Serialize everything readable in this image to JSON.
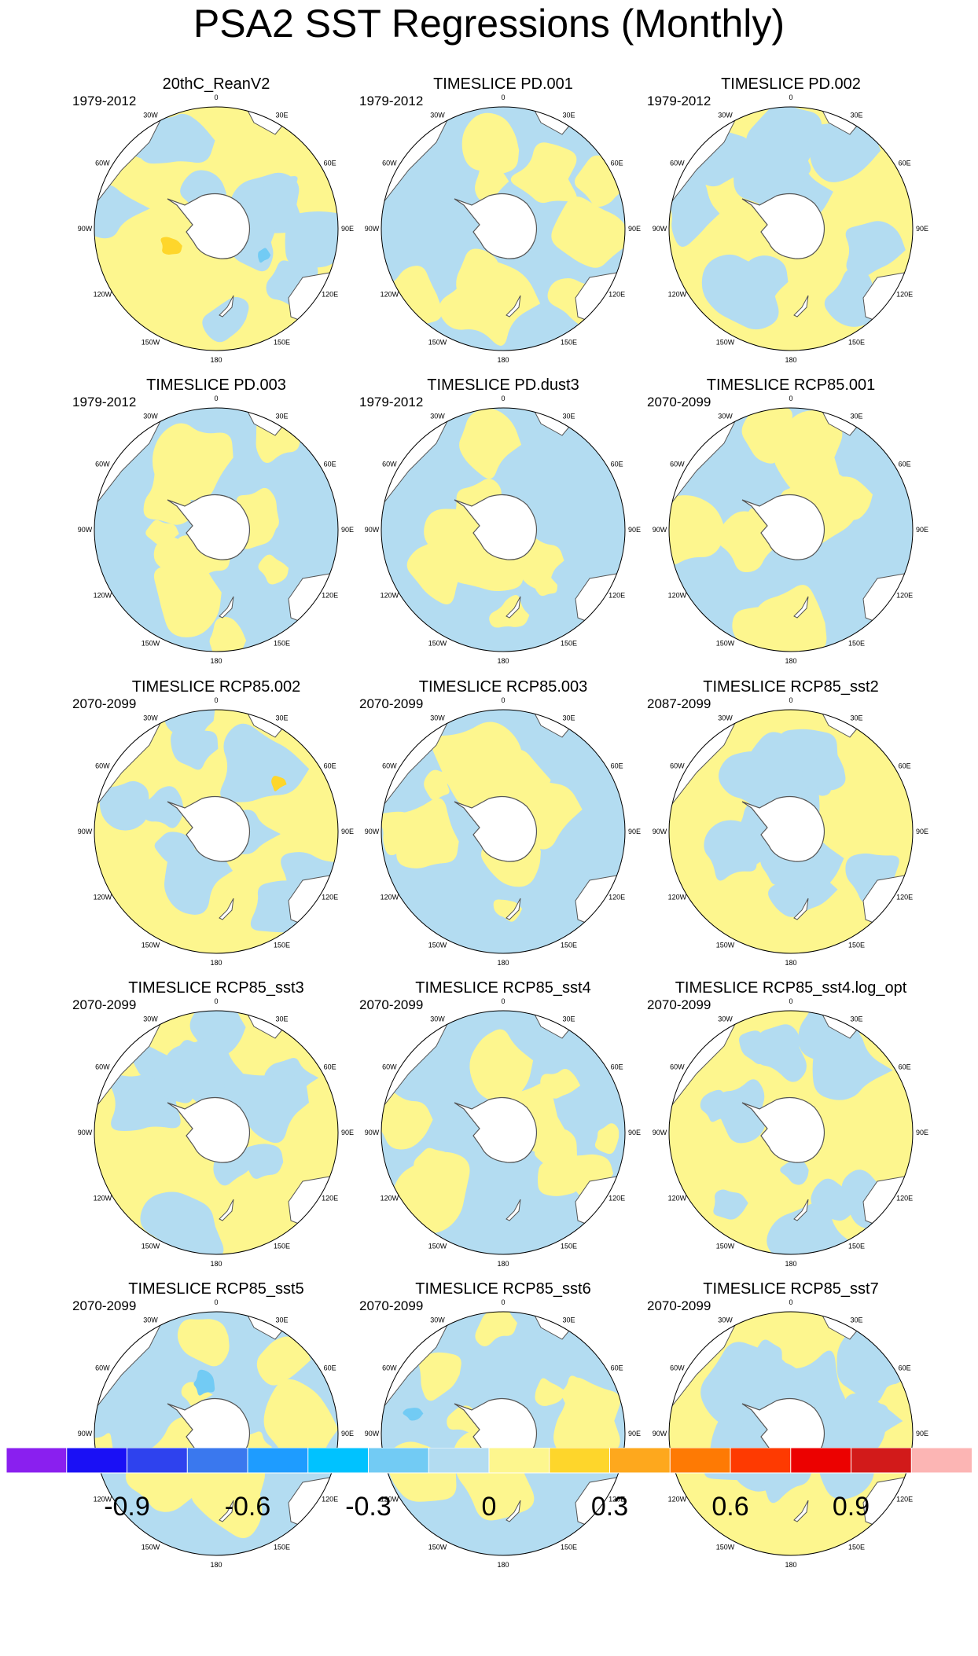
{
  "title": "PSA2 SST Regressions (Monthly)",
  "colors": {
    "land": "#ffffff",
    "coast": "#555555",
    "levels": [
      "#8a1fef",
      "#1a10f5",
      "#2e42ee",
      "#3a78ee",
      "#1e9cff",
      "#00c2ff",
      "#72cbf4",
      "#b3dcf1",
      "#fdf68e",
      "#fed62b",
      "#fea81d",
      "#fe7a04",
      "#fe3a01",
      "#ec0100",
      "#d21a1a",
      "#fcb5b4"
    ]
  },
  "legend": {
    "ticks": [
      "-0.9",
      "-0.6",
      "-0.3",
      "0",
      "0.3",
      "0.6",
      "0.9"
    ]
  },
  "map_labels": [
    "0",
    "30E",
    "60E",
    "90E",
    "120E",
    "150E",
    "180",
    "150W",
    "120W",
    "90W",
    "60W",
    "30W"
  ],
  "panels": [
    {
      "title": "20thC_ReanV2",
      "period": "1979-2012",
      "dominant": "yellow",
      "accents": [
        "blue",
        "orange"
      ]
    },
    {
      "title": "TIMESLICE PD.001",
      "period": "1979-2012",
      "dominant": "blue",
      "accents": []
    },
    {
      "title": "TIMESLICE PD.002",
      "period": "1979-2012",
      "dominant": "yellow",
      "accents": []
    },
    {
      "title": "TIMESLICE PD.003",
      "period": "1979-2012",
      "dominant": "blue",
      "accents": []
    },
    {
      "title": "TIMESLICE PD.dust3",
      "period": "1979-2012",
      "dominant": "blue",
      "accents": []
    },
    {
      "title": "TIMESLICE RCP85.001",
      "period": "2070-2099",
      "dominant": "blue",
      "accents": []
    },
    {
      "title": "TIMESLICE RCP85.002",
      "period": "2070-2099",
      "dominant": "yellow",
      "accents": [
        "orange"
      ]
    },
    {
      "title": "TIMESLICE RCP85.003",
      "period": "2070-2099",
      "dominant": "blue",
      "accents": []
    },
    {
      "title": "TIMESLICE RCP85_sst2",
      "period": "2087-2099",
      "dominant": "yellow",
      "accents": []
    },
    {
      "title": "TIMESLICE RCP85_sst3",
      "period": "2070-2099",
      "dominant": "yellow",
      "accents": []
    },
    {
      "title": "TIMESLICE RCP85_sst4",
      "period": "2070-2099",
      "dominant": "blue",
      "accents": []
    },
    {
      "title": "TIMESLICE RCP85_sst4.log_opt",
      "period": "2070-2099",
      "dominant": "yellow",
      "accents": []
    },
    {
      "title": "TIMESLICE RCP85_sst5",
      "period": "2070-2099",
      "dominant": "blue",
      "accents": [
        "blue"
      ]
    },
    {
      "title": "TIMESLICE RCP85_sst6",
      "period": "2070-2099",
      "dominant": "blue",
      "accents": [
        "blue"
      ]
    },
    {
      "title": "TIMESLICE RCP85_sst7",
      "period": "2070-2099",
      "dominant": "yellow",
      "accents": []
    }
  ]
}
